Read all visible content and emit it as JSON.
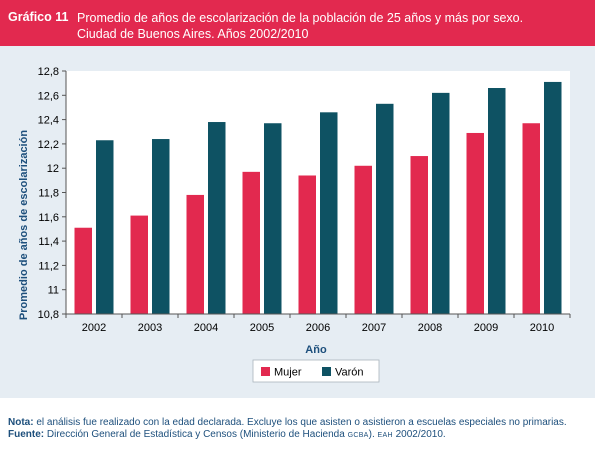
{
  "header": {
    "label": "Gráfico 11",
    "title_line1": "Promedio de años de escolarización de la población de 25 años y más por sexo.",
    "title_line2": "Ciudad de Buenos Aires. Años 2002/2010"
  },
  "colors": {
    "header_bg": "#e2294f",
    "panel_bg": "#e6edf3",
    "mujer": "#e2294f",
    "varon": "#0e5263",
    "axis_text": "#000000",
    "axis_title": "#1d4f7c"
  },
  "chart_data": {
    "type": "bar",
    "xlabel": "Año",
    "ylabel": "Promedio de años de escolarización",
    "categories": [
      "2002",
      "2003",
      "2004",
      "2005",
      "2006",
      "2007",
      "2008",
      "2009",
      "2010"
    ],
    "series": [
      {
        "name": "Mujer",
        "color": "#e2294f",
        "values": [
          11.51,
          11.61,
          11.78,
          11.97,
          11.94,
          12.02,
          12.1,
          12.29,
          12.37
        ]
      },
      {
        "name": "Varón",
        "color": "#0e5263",
        "values": [
          12.23,
          12.24,
          12.38,
          12.37,
          12.46,
          12.53,
          12.62,
          12.66,
          12.71
        ]
      }
    ],
    "ylim": [
      10.8,
      12.8
    ],
    "yticks": [
      10.8,
      11,
      11.2,
      11.4,
      11.6,
      11.8,
      12,
      12.2,
      12.4,
      12.6,
      12.8
    ],
    "ytick_labels": [
      "10,8",
      "11",
      "11,2",
      "11,4",
      "11,6",
      "11,8",
      "12",
      "12,2",
      "12,4",
      "12,6",
      "12,8"
    ],
    "grid": false,
    "legend_position": "bottom"
  },
  "footer": {
    "nota_label": "Nota:",
    "nota_text": " el análisis fue realizado con la edad declarada. Excluye los que asisten o asistieron a escuelas especiales no primarias.",
    "fuente_label": "Fuente:",
    "fuente_text": " Dirección General de Estadística y Censos (Ministerio de Hacienda ",
    "fuente_gcba": "GCBA",
    "fuente_mid": "). ",
    "fuente_eah": "EAH",
    "fuente_end": " 2002/2010."
  }
}
